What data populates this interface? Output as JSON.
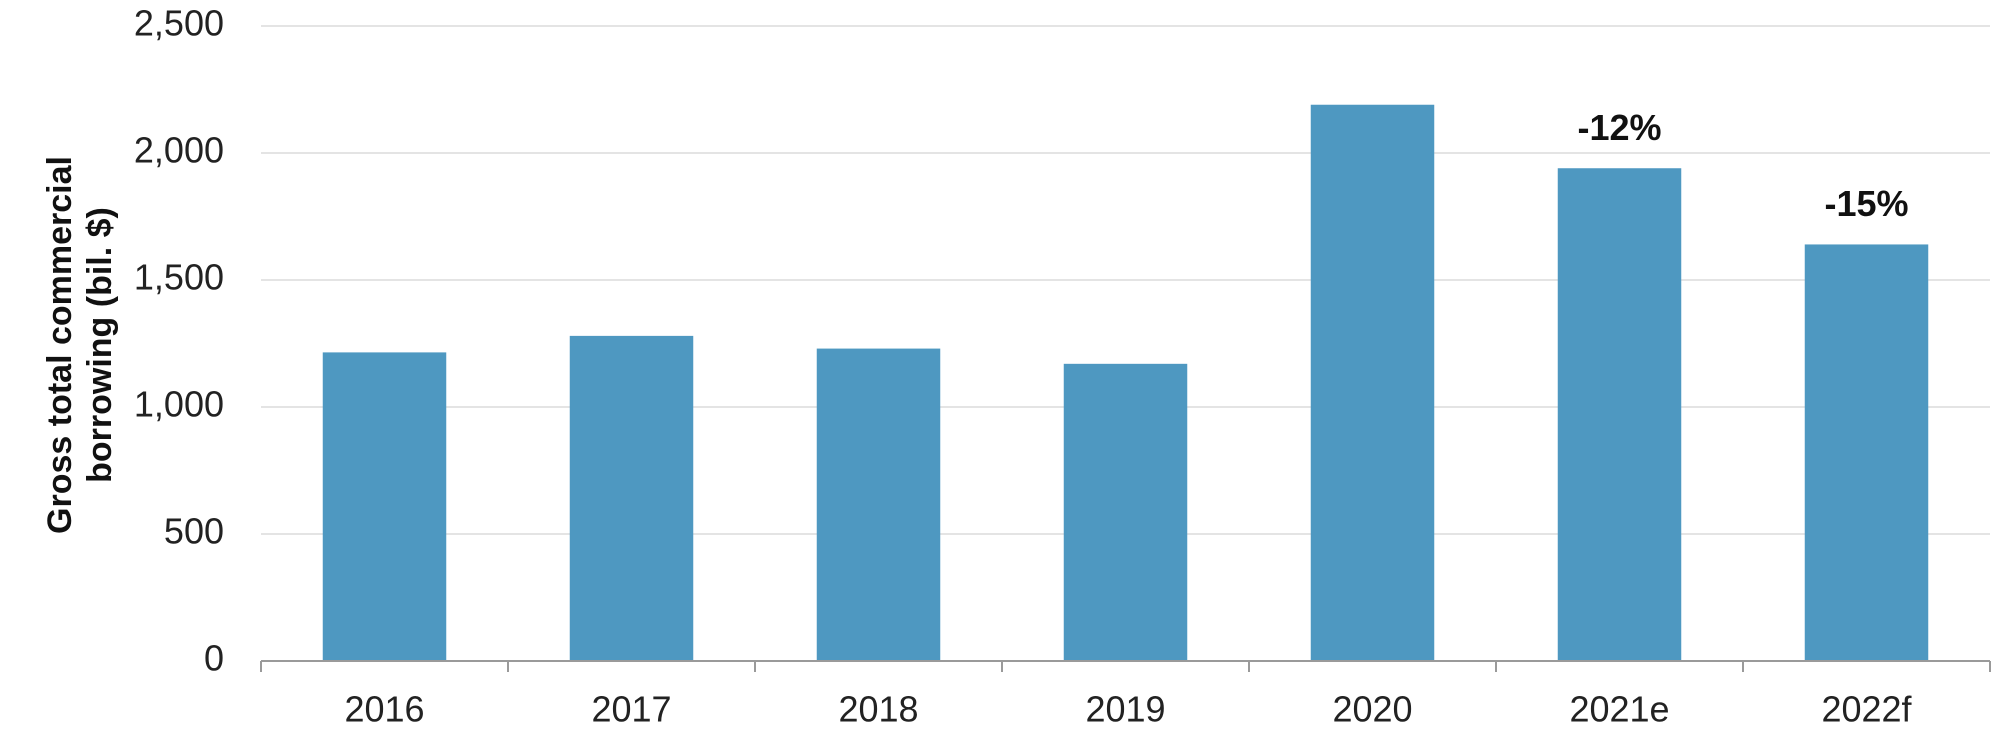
{
  "chart_data": {
    "type": "bar",
    "ylabel": "Gross total commercial borrowing (bil. $)",
    "categories": [
      "2016",
      "2017",
      "2018",
      "2019",
      "2020",
      "2021e",
      "2022f"
    ],
    "values": [
      1215,
      1280,
      1230,
      1170,
      2190,
      1940,
      1640
    ],
    "color": "#4e98c1",
    "ylim": [
      0,
      2500
    ],
    "yticks": [
      0,
      500,
      {
        "value": 1000,
        "label": "1,000"
      },
      {
        "value": 1500,
        "label": "1,500"
      },
      {
        "value": 2000,
        "label": "2,000"
      },
      {
        "value": 2500,
        "label": "2,500"
      }
    ],
    "grid": true,
    "annotations": [
      {
        "x": "2021e",
        "text": "-12%"
      },
      {
        "x": "2022f",
        "text": "-15%"
      }
    ]
  }
}
